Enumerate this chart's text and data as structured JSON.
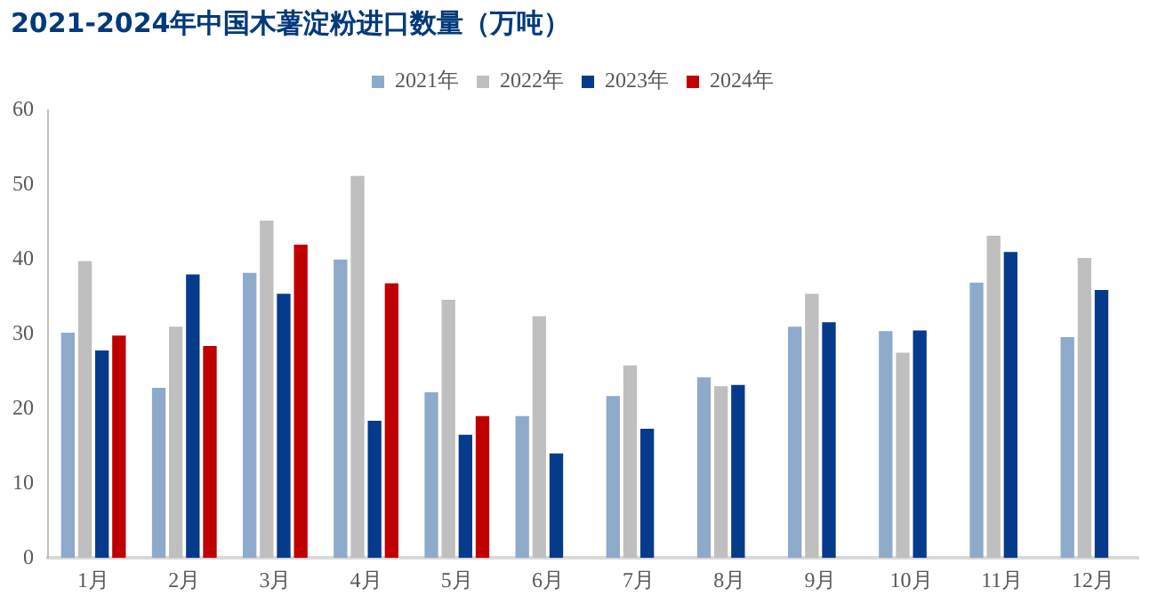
{
  "chart_data": {
    "type": "bar",
    "title": "2021-2024年中国木薯淀粉进口数量（万吨）",
    "categories": [
      "1月",
      "2月",
      "3月",
      "4月",
      "5月",
      "6月",
      "7月",
      "8月",
      "9月",
      "10月",
      "11月",
      "12月"
    ],
    "series": [
      {
        "name": "2021年",
        "color": "#8eaacb",
        "values": [
          30.2,
          22.8,
          38.2,
          40,
          22.2,
          19,
          21.7,
          24.2,
          31,
          30.4,
          36.9,
          29.6
        ]
      },
      {
        "name": "2022年",
        "color": "#bfbfbf",
        "values": [
          39.8,
          31,
          45.2,
          51.2,
          34.6,
          32.4,
          25.8,
          23,
          35.4,
          27.5,
          43.2,
          40.2
        ]
      },
      {
        "name": "2023年",
        "color": "#063b8c",
        "values": [
          27.8,
          38,
          35.4,
          18.4,
          16.5,
          14,
          17.3,
          23.2,
          31.6,
          30.5,
          41,
          35.9
        ]
      },
      {
        "name": "2024年",
        "color": "#c00000",
        "values": [
          29.8,
          28.4,
          42,
          36.8,
          19,
          null,
          null,
          null,
          null,
          null,
          null,
          null
        ]
      }
    ],
    "ylim": [
      0,
      60
    ],
    "yticks": [
      0,
      10,
      20,
      30,
      40,
      50,
      60
    ],
    "grid": false,
    "legend": "top"
  }
}
